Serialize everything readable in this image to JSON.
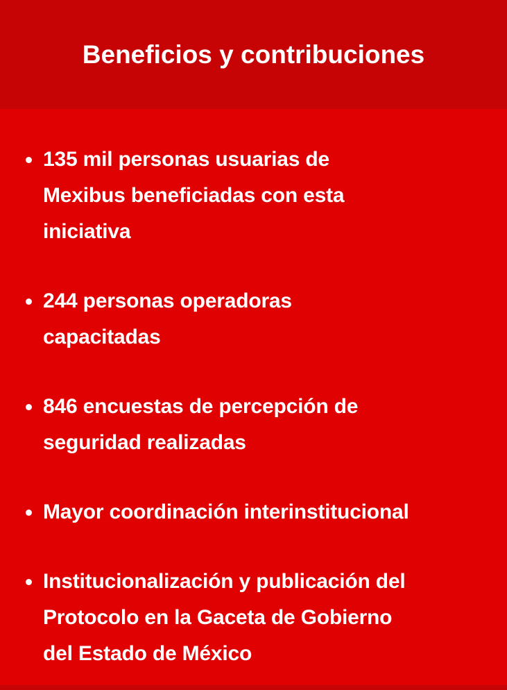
{
  "theme": {
    "header_bg": "#c60406",
    "body_bg": "#e00103",
    "text_color": "#ffffff"
  },
  "header": {
    "title": "Beneficios y contribuciones"
  },
  "bullets": [
    {
      "lines": [
        "135 mil personas usuarias de",
        "Mexibus beneficiadas con esta",
        "iniciativa"
      ]
    },
    {
      "lines": [
        "244 personas operadoras",
        "capacitadas"
      ]
    },
    {
      "lines": [
        "846 encuestas de percepción de",
        "seguridad realizadas"
      ]
    },
    {
      "lines": [
        "Mayor coordinación interinstitucional"
      ]
    },
    {
      "lines": [
        "Institucionalización y publicación del",
        "Protocolo en la Gaceta de Gobierno",
        "del Estado de México"
      ]
    }
  ]
}
